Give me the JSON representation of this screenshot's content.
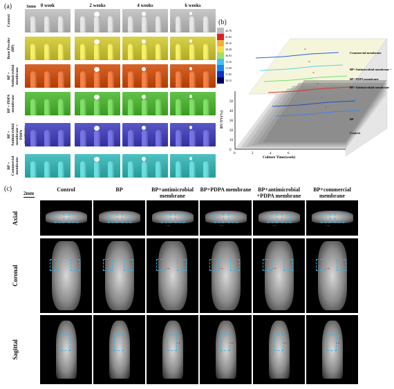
{
  "panel_a": {
    "label": "(a)",
    "scale_bar": "3mm",
    "columns": [
      "0 week",
      "2 weeks",
      "4 weeks",
      "6 weeks"
    ],
    "rows": [
      {
        "label": "Control",
        "color": "#c8c8c8"
      },
      {
        "label": "Bone Powder (BP)",
        "color": "#d9d24a"
      },
      {
        "label": "BP + Antimicrobial membrane",
        "color": "#d8642a"
      },
      {
        "label": "BP + PDPA membrane",
        "color": "#63c24a"
      },
      {
        "label": "BP + Antimicrobial membrane + PDPA membrane",
        "color": "#5a57c8"
      },
      {
        "label": "BP + Commercial membrane",
        "color": "#4ec2c2"
      }
    ]
  },
  "panel_b": {
    "label": "(b)",
    "ylabel": "BV/TV(%)",
    "xlabel": "Culture Time(week)",
    "legend_values": [
      "42.78",
      "41.82",
      "40.16",
      "38.49",
      "36.83",
      "15.16",
      "13.49",
      "11.82",
      "10.12"
    ],
    "legend_colors": [
      "#bdbdbd",
      "#e02020",
      "#f0b040",
      "#f0e040",
      "#9be060",
      "#40c0f0",
      "#2080f0",
      "#1030c0",
      "#000060"
    ],
    "series_labels": [
      "Commercial membrane",
      "BP+Antimicrobial membrane + PDPA membrane",
      "BP+PDPA membrane",
      "BP+Antimicrobial membrane",
      "BP",
      "Control"
    ],
    "yticks": [
      "0",
      "10",
      "20",
      "30",
      "40",
      "50"
    ],
    "xticks": [
      "0",
      "2",
      "4",
      "6"
    ],
    "star": "*"
  },
  "panel_c": {
    "label": "(c)",
    "scale_bar": "2mm",
    "columns": [
      "Control",
      "BP",
      "BP+antimicrobial membrane",
      "BP+PDPA membrane",
      "BP+antimicrobial +PDPA membrane",
      "BP+commercial membrane"
    ],
    "views": [
      "Axial",
      "Coronal",
      "Sagittal"
    ]
  }
}
